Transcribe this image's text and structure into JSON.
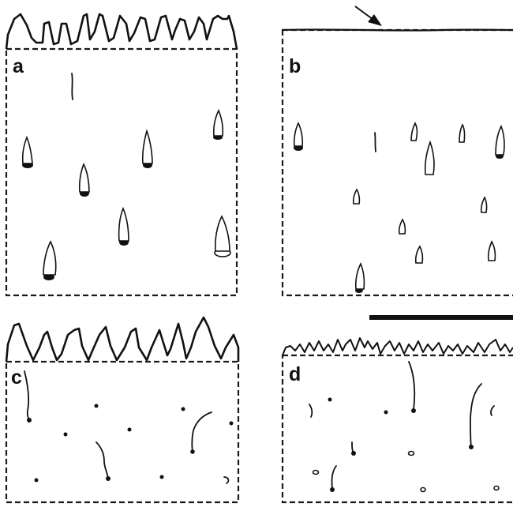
{
  "figure": {
    "panels": [
      {
        "id": "a",
        "label": "a"
      },
      {
        "id": "b",
        "label": "b"
      },
      {
        "id": "c",
        "label": "c"
      },
      {
        "id": "d",
        "label": "d"
      }
    ]
  },
  "colors": {
    "ink": "#111111",
    "background": "#ffffff"
  }
}
